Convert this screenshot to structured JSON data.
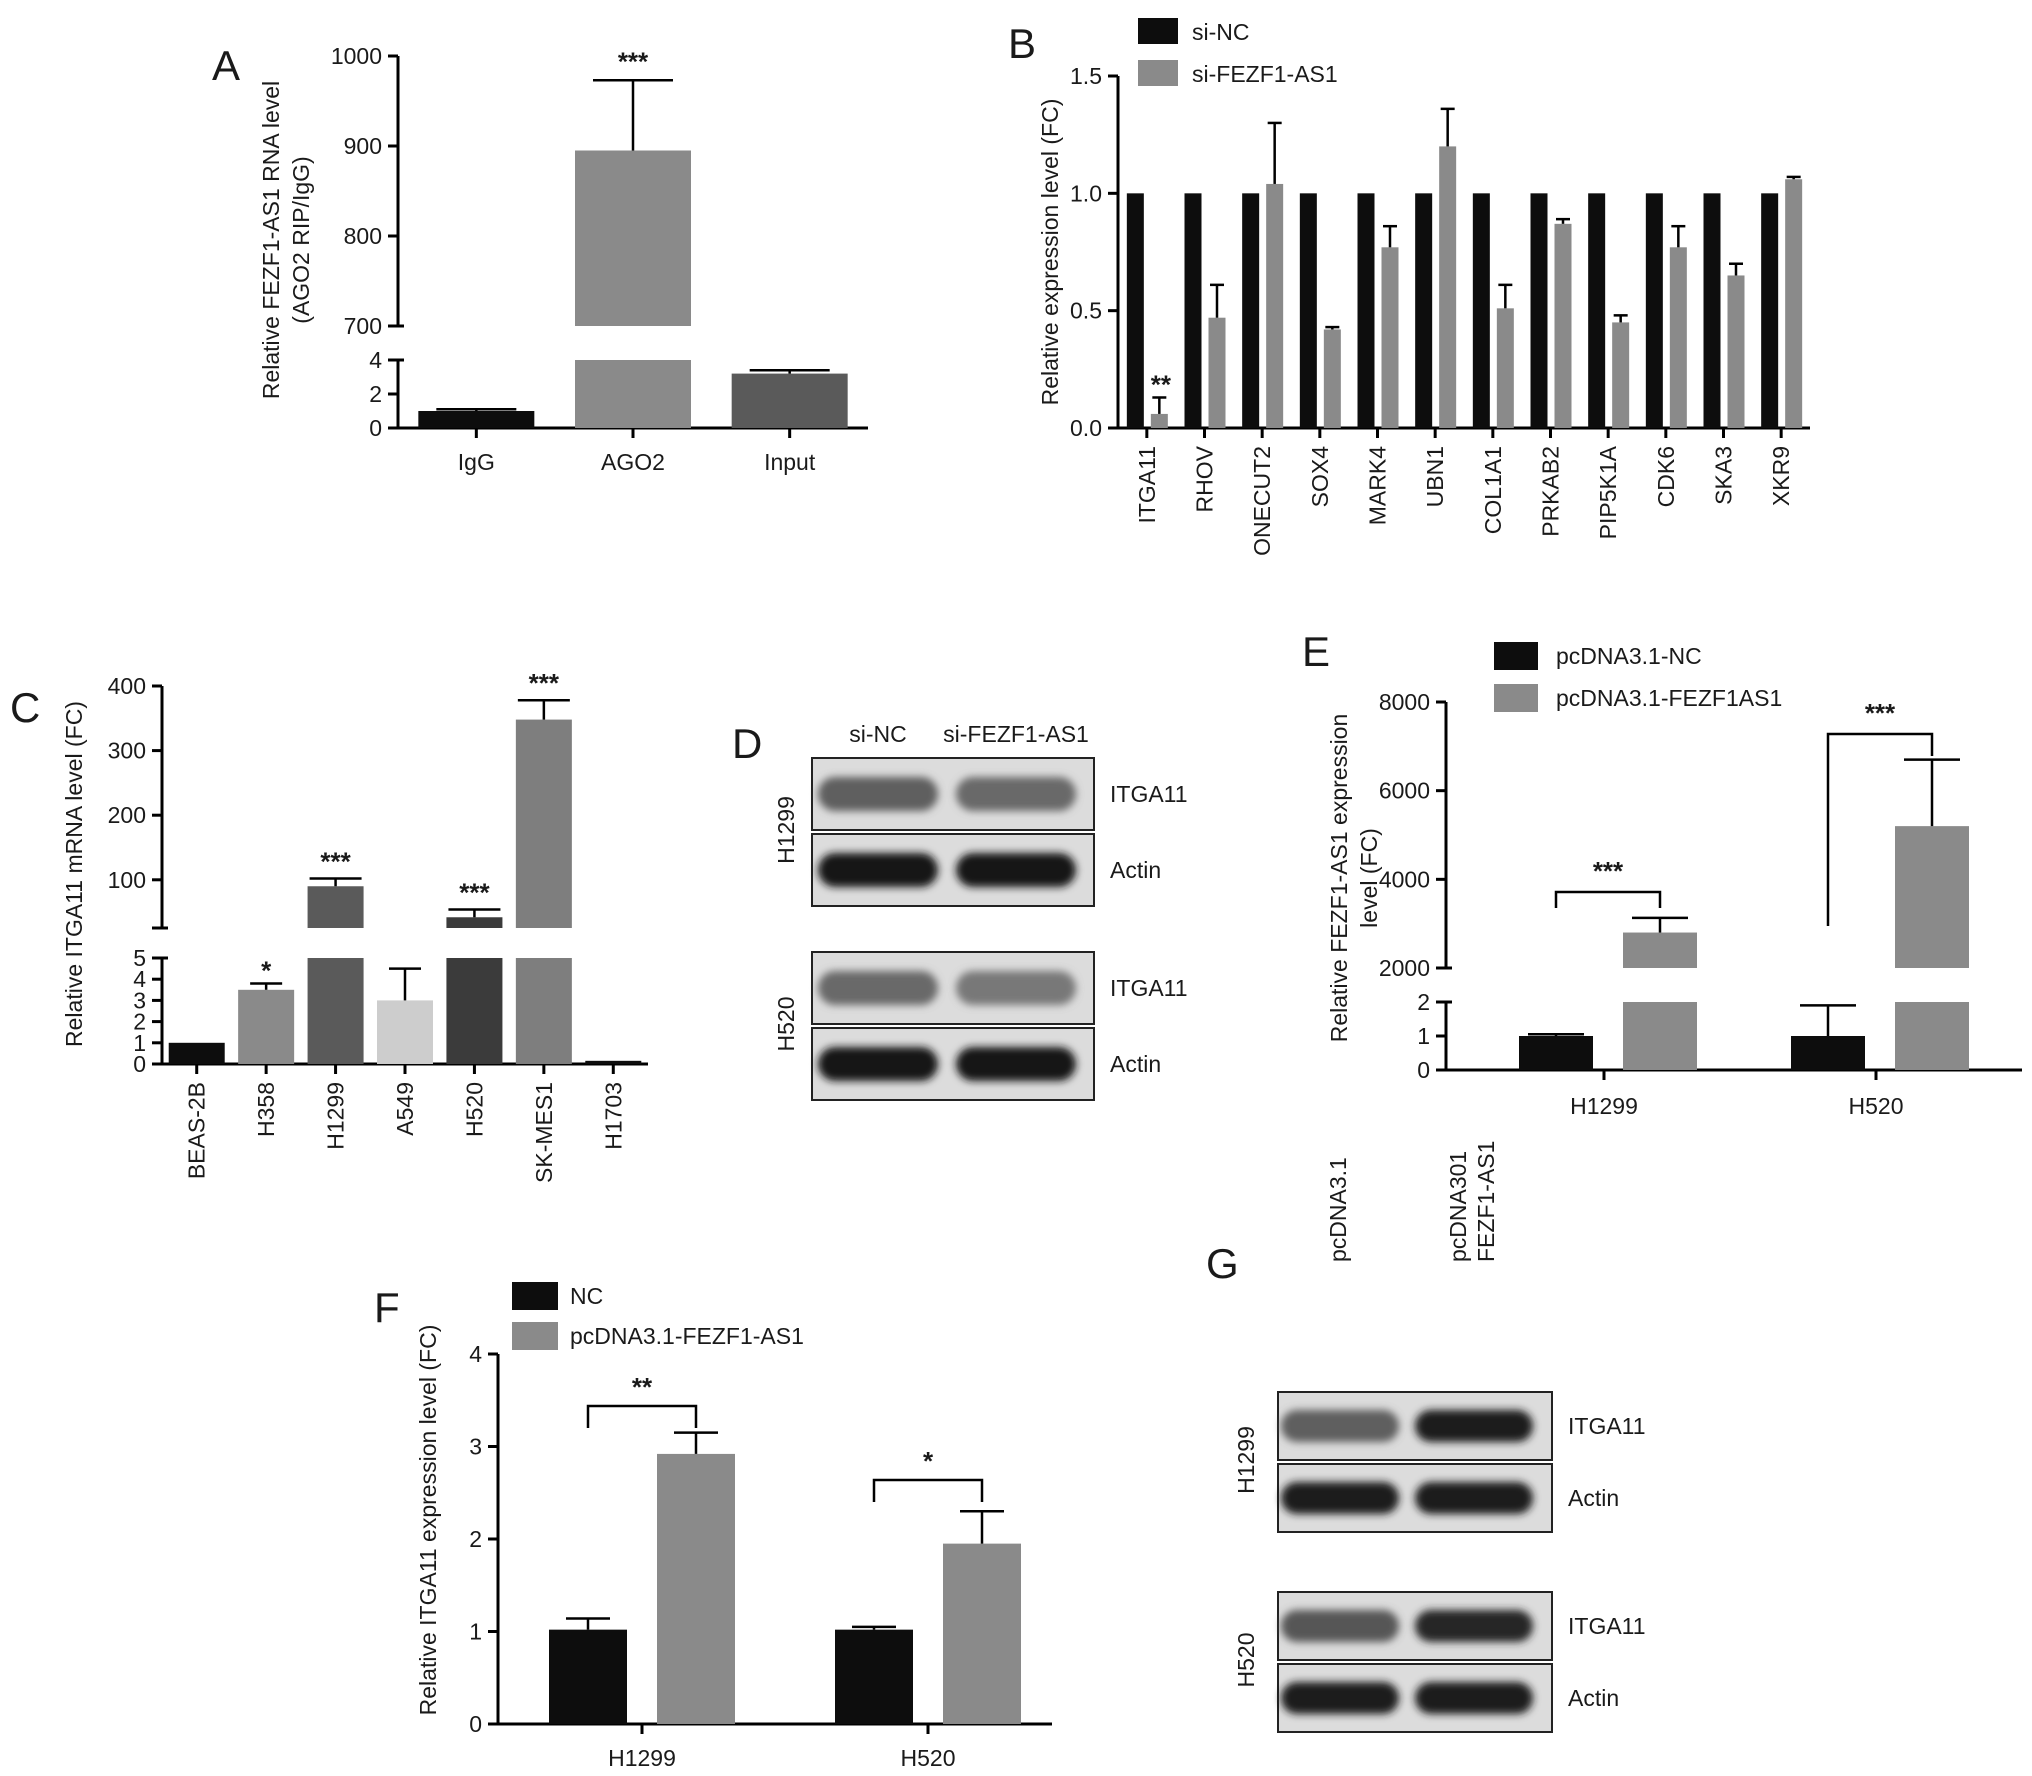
{
  "colors": {
    "black": "#0d0d0d",
    "gray": "#8a8a8a",
    "gray_mid": "#7e7e7e",
    "gray_dark": "#5a5a5a",
    "gray_light": "#cdcdcd",
    "gray_very_dark": "#3b3b3b",
    "blot_bg": "#dcdcdc"
  },
  "panels": {
    "A": {
      "letter": "A"
    },
    "B": {
      "letter": "B"
    },
    "C": {
      "letter": "C"
    },
    "D": {
      "letter": "D"
    },
    "E": {
      "letter": "E"
    },
    "F": {
      "letter": "F"
    },
    "G": {
      "letter": "G"
    }
  },
  "chart_data": [
    {
      "id": "A",
      "type": "bar",
      "broken_axis": true,
      "ylabel": "Relative FEZF1-AS1 RNA level\n(AGO2 RIP/IgG)",
      "categories": [
        "IgG",
        "AGO2",
        "Input"
      ],
      "values": [
        1,
        895,
        3.2
      ],
      "errors": [
        0.1,
        78,
        0.2
      ],
      "bar_colors": [
        "#0d0d0d",
        "#8a8a8a",
        "#5a5a5a"
      ],
      "significance": [
        "",
        "***",
        ""
      ],
      "ylim_lower": [
        0,
        4
      ],
      "yticks_lower": [
        "0",
        "2",
        "4"
      ],
      "ylim_upper": [
        700,
        1000
      ],
      "yticks_upper": [
        "700",
        "800",
        "900",
        "1000"
      ]
    },
    {
      "id": "B",
      "type": "bar",
      "ylabel": "Relative expression level (FC)",
      "categories": [
        "ITGA11",
        "RHOV",
        "ONECUT2",
        "SOX4",
        "MARK4",
        "UBN1",
        "COL1A1",
        "PRKAB2",
        "PIP5K1A",
        "CDK6",
        "SKA3",
        "XKR9"
      ],
      "series": [
        {
          "name": "si-NC",
          "values": [
            1,
            1,
            1,
            1,
            1,
            1,
            1,
            1,
            1,
            1,
            1,
            1
          ],
          "errors": [
            0,
            0,
            0,
            0,
            0,
            0,
            0,
            0,
            0,
            0,
            0,
            0
          ]
        },
        {
          "name": "si-FEZF1-AS1",
          "values": [
            0.06,
            0.47,
            1.04,
            0.42,
            0.77,
            1.2,
            0.51,
            0.87,
            0.45,
            0.77,
            0.65,
            1.06
          ],
          "errors": [
            0.07,
            0.14,
            0.26,
            0.01,
            0.09,
            0.16,
            0.1,
            0.02,
            0.03,
            0.09,
            0.05,
            0.01
          ]
        }
      ],
      "significance": [
        "**",
        "",
        "",
        "",
        "",
        "",
        "",
        "",
        "",
        "",
        "",
        ""
      ],
      "ylim": [
        0,
        1.5
      ],
      "yticks": [
        "0.0",
        "0.5",
        "1.0",
        "1.5"
      ],
      "legend": "top"
    },
    {
      "id": "C",
      "type": "bar",
      "broken_axis": true,
      "ylabel": "Relative ITGA11 mRNA level (FC)",
      "categories": [
        "BEAS-2B",
        "H358",
        "H1299",
        "A549",
        "H520",
        "SK-MES1",
        "H1703"
      ],
      "values": [
        1,
        3.5,
        90,
        3,
        42,
        348,
        0.15
      ],
      "errors": [
        0,
        0.3,
        12,
        1.5,
        12,
        30,
        0
      ],
      "bar_colors": [
        "#0d0d0d",
        "#8a8a8a",
        "#5a5a5a",
        "#cdcdcd",
        "#3b3b3b",
        "#7e7e7e",
        "#0d0d0d"
      ],
      "significance": [
        "",
        "*",
        "***",
        "",
        "***",
        "***",
        ""
      ],
      "ylim_lower": [
        0,
        5
      ],
      "yticks_lower": [
        "0",
        "1",
        "2",
        "3",
        "4",
        "5"
      ],
      "ylim_upper": [
        30,
        400
      ],
      "yticks_upper": [
        "100",
        "200",
        "300",
        "400"
      ]
    },
    {
      "id": "E",
      "type": "bar",
      "broken_axis": true,
      "ylabel": "Relative FEZF1-AS1 expression\nlevel (FC)",
      "categories": [
        "H1299",
        "H520"
      ],
      "series": [
        {
          "name": "pcDNA3.1-NC",
          "values": [
            1,
            1
          ],
          "errors": [
            0.05,
            0.9
          ]
        },
        {
          "name": "pcDNA3.1-FEZF1AS1",
          "values": [
            2800,
            5200
          ],
          "errors": [
            330,
            1500
          ]
        }
      ],
      "significance": [
        "***",
        "***"
      ],
      "ylim_lower": [
        0,
        2
      ],
      "yticks_lower": [
        "0",
        "1",
        "2"
      ],
      "ylim_upper": [
        2000,
        8000
      ],
      "yticks_upper": [
        "2000",
        "4000",
        "6000",
        "8000"
      ],
      "legend": "top"
    },
    {
      "id": "F",
      "type": "bar",
      "ylabel": "Relative ITGA11 expression level (FC)",
      "categories": [
        "H1299",
        "H520"
      ],
      "series": [
        {
          "name": "NC",
          "values": [
            1.02,
            1.02
          ],
          "errors": [
            0.12,
            0.03
          ]
        },
        {
          "name": "pcDNA3.1-FEZF1-AS1",
          "values": [
            2.92,
            1.95
          ],
          "errors": [
            0.23,
            0.35
          ]
        }
      ],
      "significance": [
        "**",
        "*"
      ],
      "ylim": [
        0,
        4
      ],
      "yticks": [
        "0",
        "1",
        "2",
        "3",
        "4"
      ],
      "legend": "top"
    }
  ],
  "blots": {
    "D": {
      "lanes": [
        "si-NC",
        "si-FEZF1-AS1"
      ],
      "groups": [
        {
          "cell": "H1299",
          "rows": [
            {
              "label": "ITGA11",
              "intensity": [
                0.55,
                0.5
              ]
            },
            {
              "label": "Actin",
              "intensity": [
                0.95,
                0.93
              ]
            }
          ]
        },
        {
          "cell": "H520",
          "rows": [
            {
              "label": "ITGA11",
              "intensity": [
                0.5,
                0.42
              ]
            },
            {
              "label": "Actin",
              "intensity": [
                0.95,
                0.95
              ]
            }
          ]
        }
      ]
    },
    "G": {
      "lanes": [
        "pcDNA3.1",
        "pcDNA301\nFEZF1-AS1"
      ],
      "groups": [
        {
          "cell": "H1299",
          "rows": [
            {
              "label": "ITGA11",
              "intensity": [
                0.55,
                0.9
              ]
            },
            {
              "label": "Actin",
              "intensity": [
                0.9,
                0.9
              ]
            }
          ]
        },
        {
          "cell": "H520",
          "rows": [
            {
              "label": "ITGA11",
              "intensity": [
                0.6,
                0.85
              ]
            },
            {
              "label": "Actin",
              "intensity": [
                0.9,
                0.9
              ]
            }
          ]
        }
      ]
    }
  }
}
